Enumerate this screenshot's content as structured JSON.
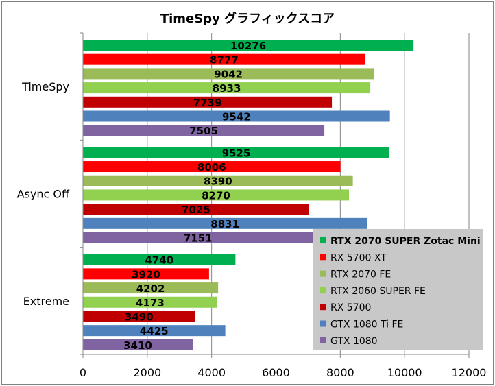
{
  "chart_data": {
    "type": "bar",
    "orientation": "horizontal",
    "title": "TimeSpy グラフィックスコア",
    "categories": [
      "TimeSpy",
      "Async Off",
      "Extreme"
    ],
    "xlim": [
      0,
      12000
    ],
    "xticks": [
      "0",
      "2000",
      "4000",
      "6000",
      "8000",
      "10000",
      "12000"
    ],
    "grid": true,
    "legend_position": "bottom-right",
    "series": [
      {
        "name": "RTX 2070 SUPER Zotac Mini",
        "color": "#00b050",
        "values": [
          10276,
          9525,
          4740
        ]
      },
      {
        "name": "RX 5700 XT",
        "color": "#ff0000",
        "values": [
          8777,
          8006,
          3920
        ]
      },
      {
        "name": "RTX 2070 FE",
        "color": "#9bbb59",
        "values": [
          9042,
          8390,
          4202
        ]
      },
      {
        "name": "RTX 2060 SUPER FE",
        "color": "#92d050",
        "values": [
          8933,
          8270,
          4173
        ]
      },
      {
        "name": "RX 5700",
        "color": "#c00000",
        "values": [
          7739,
          7025,
          3490
        ]
      },
      {
        "name": "GTX 1080 Ti FE",
        "color": "#4f81bd",
        "values": [
          9542,
          8831,
          4425
        ]
      },
      {
        "name": "GTX 1080",
        "color": "#8064a2",
        "values": [
          7505,
          7151,
          3410
        ]
      }
    ],
    "legend_highlight": "RTX 2070 SUPER Zotac Mini"
  }
}
